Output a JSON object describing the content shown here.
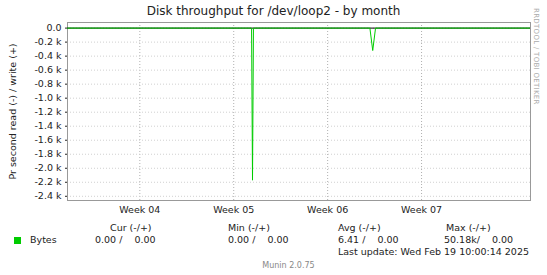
{
  "chart_data": {
    "type": "line",
    "title": "Disk throughput for /dev/loop2 - by month",
    "y_label": "Pr second read (-) / write (+)",
    "x": [
      3.73,
      5.69,
      5.7,
      5.71,
      6.95,
      6.98,
      7.01,
      8.66
    ],
    "series": [
      {
        "name": "Bytes",
        "color": "#00cc00",
        "values": [
          0,
          0,
          -2170,
          0,
          0,
          -320,
          0,
          0
        ]
      }
    ],
    "xlim": [
      3.73,
      8.66
    ],
    "xticks": [
      {
        "value": 4.5,
        "label": "Week 04"
      },
      {
        "value": 5.5,
        "label": "Week 05"
      },
      {
        "value": 6.5,
        "label": "Week 06"
      },
      {
        "value": 7.5,
        "label": "Week 07"
      }
    ],
    "ylim": [
      -2460,
      80
    ],
    "yticks": [
      {
        "value": 0,
        "label": "0.0"
      },
      {
        "value": -200,
        "label": "-0.2 k"
      },
      {
        "value": -400,
        "label": "-0.4 k"
      },
      {
        "value": -600,
        "label": "-0.6 k"
      },
      {
        "value": -800,
        "label": "-0.8 k"
      },
      {
        "value": -1000,
        "label": "-1.0 k"
      },
      {
        "value": -1200,
        "label": "-1.2 k"
      },
      {
        "value": -1400,
        "label": "-1.4 k"
      },
      {
        "value": -1600,
        "label": "-1.6 k"
      },
      {
        "value": -1800,
        "label": "-1.8 k"
      },
      {
        "value": -2000,
        "label": "-2.0 k"
      },
      {
        "value": -2200,
        "label": "-2.2 k"
      },
      {
        "value": -2400,
        "label": "-2.4 k"
      }
    ],
    "grid": true,
    "summary": {
      "headers": [
        "Cur (-/+)",
        "Min (-/+)",
        "Avg (-/+)",
        "Max (-/+)"
      ],
      "cells": [
        "0.00 /    0.00",
        "0.00 /    0.00",
        "6.41 /    0.00",
        "50.18k/    0.00"
      ]
    },
    "last_update": "Last update: Wed Feb 19 10:00:14 2025",
    "credit": "Munin 2.0.75",
    "side_text": "RRDTOOL / TOBI OETIKER"
  }
}
